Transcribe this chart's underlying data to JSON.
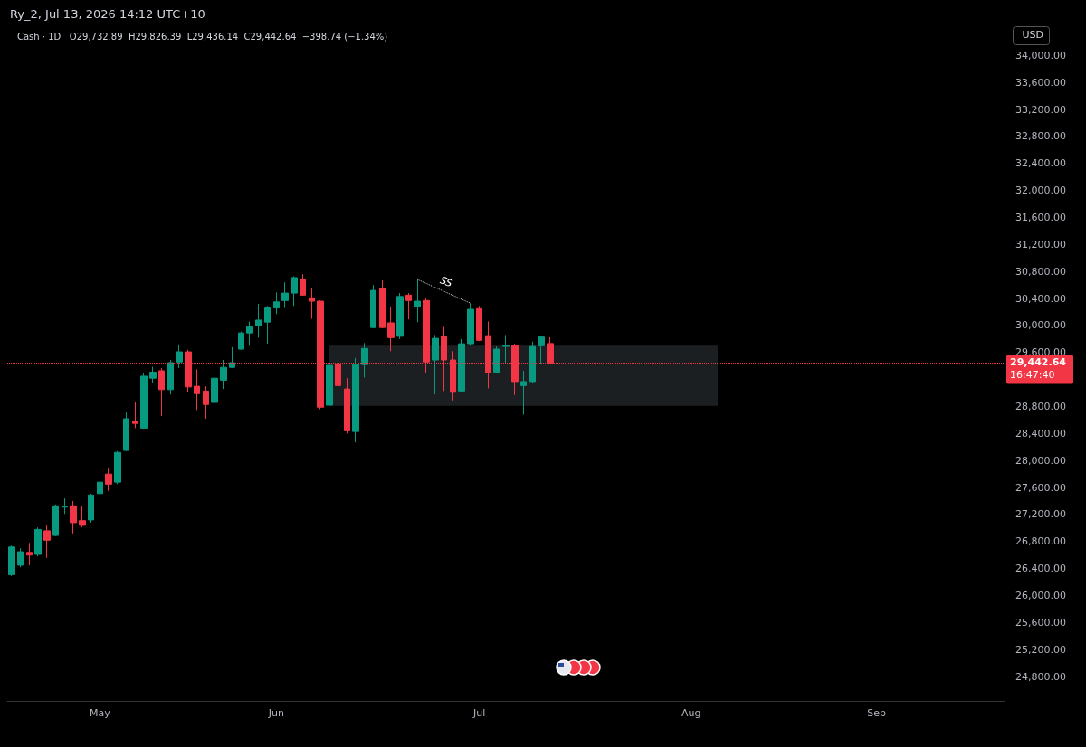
{
  "chart_data": {
    "type": "candlestick",
    "title": "Ry_2, Jul 13, 2026 14:12 UTC+10",
    "subtitle": "Cash · 1D   O29,732.89  H29,826.39  L29,436.14  C29,442.64  −398.74 (−1.34%)",
    "annotations": [
      "USD",
      "SS",
      "16:47:40"
    ],
    "categories": [
      null,
      null,
      null,
      null,
      null,
      null,
      null,
      null,
      null,
      null,
      "May",
      null,
      null,
      null,
      null,
      null,
      null,
      null,
      null,
      null,
      null,
      null,
      null,
      null,
      null,
      null,
      null,
      null,
      null,
      null,
      "Jun",
      null,
      null,
      null,
      null,
      null,
      null,
      null,
      null,
      null,
      null,
      null,
      null,
      null,
      null,
      null,
      null,
      null,
      null,
      null,
      null,
      null,
      null,
      "Jul",
      null,
      null,
      null,
      null,
      null,
      null,
      null,
      null,
      null,
      null,
      null,
      null,
      null,
      null,
      null,
      null,
      null,
      null,
      null,
      null,
      null,
      null,
      null,
      "Aug",
      null,
      null,
      null,
      null,
      null,
      null,
      null,
      null,
      null,
      null,
      null,
      null,
      null,
      null,
      null,
      null,
      null,
      null,
      null,
      null,
      "Sep",
      null,
      null,
      null,
      null,
      null,
      null,
      null,
      null,
      null,
      null,
      null,
      null,
      null,
      null
    ],
    "ohlc": [
      [
        26310,
        26740,
        26290,
        26720
      ],
      [
        26450,
        26700,
        26420,
        26650
      ],
      [
        26640,
        26780,
        26450,
        26600
      ],
      [
        26610,
        27010,
        26580,
        26980
      ],
      [
        26960,
        27040,
        26560,
        26820
      ],
      [
        26890,
        27350,
        26880,
        27330
      ],
      [
        27310,
        27440,
        27210,
        27320
      ],
      [
        27330,
        27400,
        26920,
        27080
      ],
      [
        27110,
        27320,
        27010,
        27040
      ],
      [
        27120,
        27510,
        27080,
        27490
      ],
      [
        27510,
        27830,
        27440,
        27680
      ],
      [
        27800,
        27880,
        27550,
        27650
      ],
      [
        27680,
        28140,
        27650,
        28120
      ],
      [
        28150,
        28710,
        28140,
        28620
      ],
      [
        28580,
        28860,
        28480,
        28550
      ],
      [
        28480,
        29290,
        28470,
        29250
      ],
      [
        29220,
        29390,
        29150,
        29310
      ],
      [
        29330,
        29370,
        28660,
        29050
      ],
      [
        29050,
        29490,
        28980,
        29450
      ],
      [
        29460,
        29720,
        29370,
        29610
      ],
      [
        29610,
        29640,
        29020,
        29090
      ],
      [
        29100,
        29350,
        28750,
        28990
      ],
      [
        29030,
        29100,
        28620,
        28830
      ],
      [
        28860,
        29330,
        28750,
        29220
      ],
      [
        29190,
        29490,
        29060,
        29380
      ],
      [
        29380,
        29680,
        29370,
        29450
      ],
      [
        29650,
        29910,
        29640,
        29890
      ],
      [
        29890,
        30060,
        29700,
        29980
      ],
      [
        30000,
        30320,
        29820,
        30080
      ],
      [
        30050,
        30290,
        29730,
        30260
      ],
      [
        30260,
        30490,
        30170,
        30350
      ],
      [
        30370,
        30640,
        30260,
        30480
      ],
      [
        30480,
        30730,
        30290,
        30710
      ],
      [
        30690,
        30760,
        30440,
        30450
      ],
      [
        30410,
        30560,
        30100,
        30360
      ],
      [
        30360,
        30370,
        28760,
        28790
      ],
      [
        28820,
        29700,
        28800,
        29410
      ],
      [
        29430,
        29820,
        28220,
        29110
      ],
      [
        29060,
        29220,
        28400,
        28440
      ],
      [
        28430,
        29520,
        28270,
        29420
      ],
      [
        29420,
        29740,
        29230,
        29660
      ],
      [
        29970,
        30600,
        29960,
        30520
      ],
      [
        30550,
        30670,
        29960,
        29970
      ],
      [
        30040,
        30280,
        29620,
        29820
      ],
      [
        29840,
        30480,
        29800,
        30430
      ],
      [
        30450,
        30480,
        30090,
        30370
      ],
      [
        30280,
        30680,
        30050,
        30360
      ],
      [
        30370,
        30410,
        29290,
        29460
      ],
      [
        29490,
        29860,
        28980,
        29810
      ],
      [
        29840,
        29980,
        29030,
        29490
      ],
      [
        29490,
        29620,
        28890,
        29010
      ],
      [
        29030,
        29800,
        29020,
        29730
      ],
      [
        29730,
        30330,
        29700,
        30240
      ],
      [
        30250,
        30290,
        29770,
        29780
      ],
      [
        29850,
        30060,
        29070,
        29300
      ],
      [
        29310,
        29690,
        29290,
        29650
      ],
      [
        29690,
        29860,
        29450,
        29700
      ],
      [
        29700,
        29730,
        28970,
        29170
      ],
      [
        29110,
        29330,
        28680,
        29170
      ],
      [
        29170,
        29760,
        29150,
        29690
      ],
      [
        29700,
        29840,
        29430,
        29830
      ],
      [
        29732.89,
        29826.39,
        29436.14,
        29442.64
      ],
      null,
      null,
      null,
      null,
      null,
      null,
      null,
      null,
      null,
      null,
      null,
      null,
      null,
      null,
      null,
      null,
      null,
      null,
      null,
      null,
      null,
      null,
      null,
      null,
      null,
      null,
      null,
      null,
      null,
      null,
      null,
      null,
      null,
      null,
      null,
      null,
      null,
      null,
      null,
      null,
      null,
      null,
      null,
      null,
      null,
      null,
      null,
      null,
      null,
      null,
      null
    ],
    "colors": [
      "#089981",
      "#089981",
      "#f23645",
      "#089981",
      "#f23645",
      "#089981",
      "#089981",
      "#f23645",
      "#f23645",
      "#089981",
      "#089981",
      "#f23645",
      "#089981",
      "#089981",
      "#f23645",
      "#089981",
      "#089981",
      "#f23645",
      "#089981",
      "#089981",
      "#f23645",
      "#f23645",
      "#f23645",
      "#089981",
      "#089981",
      "#089981",
      "#089981",
      "#089981",
      "#089981",
      "#089981",
      "#089981",
      "#089981",
      "#089981",
      "#f23645",
      "#f23645",
      "#f23645",
      "#089981",
      "#f23645",
      "#f23645",
      "#089981",
      "#089981",
      "#089981",
      "#f23645",
      "#f23645",
      "#089981",
      "#f23645",
      "#089981",
      "#f23645",
      "#089981",
      "#f23645",
      "#f23645",
      "#089981",
      "#089981",
      "#f23645",
      "#f23645",
      "#089981",
      "#089981",
      "#f23645",
      "#089981",
      "#089981",
      "#089981",
      "#f23645",
      null,
      null,
      null,
      null,
      null,
      null,
      null,
      null,
      null,
      null,
      null,
      null,
      null,
      null,
      null,
      null,
      null,
      null,
      null,
      null,
      null,
      null,
      null,
      null,
      null,
      null,
      null,
      null,
      null,
      null,
      null,
      null,
      null,
      null,
      null,
      null,
      null,
      null,
      null,
      null,
      null,
      null,
      null,
      null,
      null,
      null,
      null,
      null,
      null,
      null,
      null
    ],
    "series": [
      {
        "type": "line",
        "color": "#d1d4dc",
        "line_style": "dotted",
        "values": [
          null,
          null,
          null,
          null,
          null,
          null,
          null,
          null,
          null,
          null,
          null,
          null,
          null,
          null,
          null,
          null,
          null,
          null,
          null,
          null,
          null,
          null,
          null,
          null,
          null,
          null,
          null,
          null,
          null,
          null,
          null,
          null,
          null,
          null,
          null,
          null,
          null,
          null,
          null,
          null,
          null,
          null,
          null,
          null,
          null,
          null,
          30680,
          null,
          null,
          null,
          null,
          null,
          30330,
          null,
          null,
          null,
          null,
          null,
          null,
          null,
          null,
          null,
          null,
          null,
          null,
          null,
          null,
          null,
          null,
          null,
          null,
          null,
          null,
          null,
          null,
          null,
          null,
          null,
          null,
          null,
          null,
          null,
          null,
          null,
          null,
          null,
          null,
          null,
          null,
          null,
          null,
          null,
          null,
          null,
          null,
          null,
          null,
          null,
          null,
          null,
          null,
          null,
          null,
          null,
          null,
          null,
          null,
          null,
          null,
          null,
          null,
          null,
          null
        ]
      }
    ],
    "ylim": [
      24440,
      34500
    ],
    "yticks": [
      {
        "value": 24800,
        "label": "24,800.00"
      },
      {
        "value": 25200,
        "label": "25,200.00"
      },
      {
        "value": 25600,
        "label": "25,600.00"
      },
      {
        "value": 26000,
        "label": "26,000.00"
      },
      {
        "value": 26400,
        "label": "26,400.00"
      },
      {
        "value": 26800,
        "label": "26,800.00"
      },
      {
        "value": 27200,
        "label": "27,200.00"
      },
      {
        "value": 27600,
        "label": "27,600.00"
      },
      {
        "value": 28000,
        "label": "28,000.00"
      },
      {
        "value": 28400,
        "label": "28,400.00"
      },
      {
        "value": 28800,
        "label": "28,800.00"
      },
      {
        "value": 29600,
        "label": "29,600.00"
      },
      {
        "value": 30000,
        "label": "30,000.00"
      },
      {
        "value": 30400,
        "label": "30,400.00"
      },
      {
        "value": 30800,
        "label": "30,800.00"
      },
      {
        "value": 31200,
        "label": "31,200.00"
      },
      {
        "value": 31600,
        "label": "31,600.00"
      },
      {
        "value": 32000,
        "label": "32,000.00"
      },
      {
        "value": 32400,
        "label": "32,400.00"
      },
      {
        "value": 32800,
        "label": "32,800.00"
      },
      {
        "value": 33200,
        "label": "33,200.00"
      },
      {
        "value": 33600,
        "label": "33,600.00"
      },
      {
        "value": 34000,
        "label": "34,000.00"
      }
    ],
    "ref_lines": [
      {
        "axis": "y",
        "value": 29442.64,
        "label": "29,442.64",
        "color": "#f23645",
        "line_style": "dotted"
      }
    ],
    "bands": [
      {
        "axis": "y",
        "from": 28810,
        "to": 29700,
        "label": null,
        "color": "#1c1f22"
      }
    ],
    "grid": false
  }
}
